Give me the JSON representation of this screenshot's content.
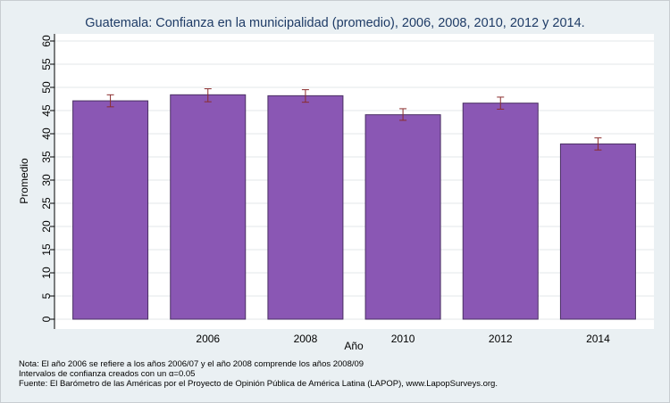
{
  "chart_data": {
    "type": "bar",
    "title": "Guatemala: Confianza en la municipalidad (promedio), 2006, 2008, 2010, 2012 y 2014.",
    "xlabel": "Año",
    "ylabel": "Promedio",
    "ylim": [
      0,
      60
    ],
    "yticks": [
      "0",
      "5",
      "10",
      "15",
      "20",
      "25",
      "30",
      "35",
      "40",
      "45",
      "50",
      "55",
      "60"
    ],
    "categories": [
      "",
      "2006",
      "2008",
      "2010",
      "2012",
      "2014"
    ],
    "values": [
      47.1,
      48.4,
      48.2,
      44.1,
      46.6,
      37.8
    ],
    "ci_low": [
      45.8,
      46.9,
      46.8,
      42.9,
      45.3,
      36.5
    ],
    "ci_high": [
      48.4,
      49.7,
      49.5,
      45.4,
      47.9,
      39.1
    ],
    "bar_color": "#8a57b4",
    "error_color": "#8b2d2d",
    "grid": true
  },
  "notes": [
    "Nota: El año 2006 se refiere a los años 2006/07 y el año 2008 comprende los años 2008/09",
    "Intervalos de confianza creados con un α=0.05",
    "Fuente: El Barómetro de las Américas por el Proyecto de Opinión Pública de América Latina (LAPOP), www.LapopSurveys.org."
  ]
}
